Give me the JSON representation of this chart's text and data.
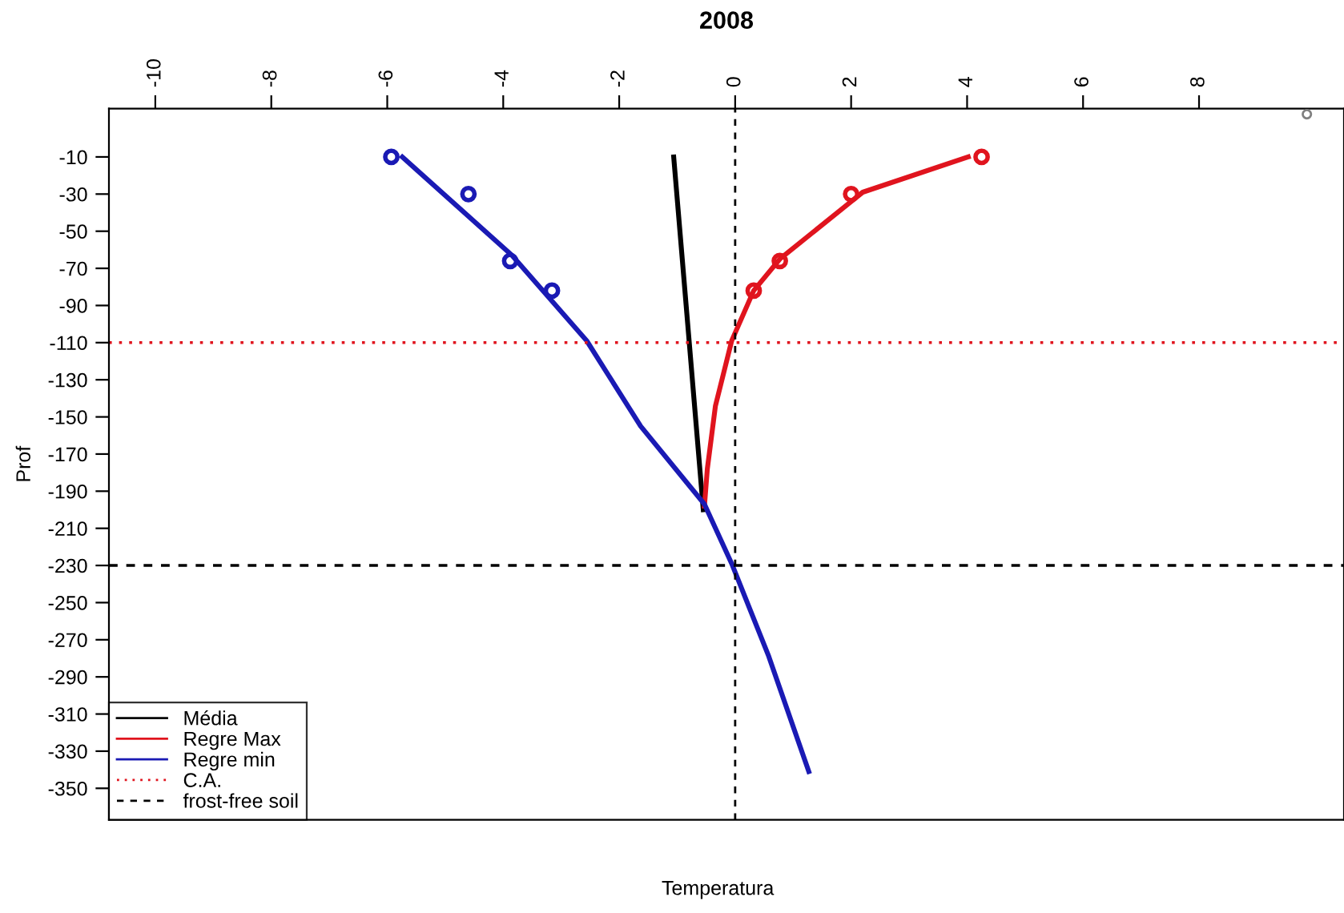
{
  "chart_data": {
    "type": "line",
    "title": "2008",
    "xlabel": "Temperatura",
    "ylabel": "Prof",
    "xlim": [
      -10.8,
      10.5
    ],
    "ylim": [
      -367,
      16
    ],
    "xticks": [
      -10,
      -8,
      -6,
      -4,
      -2,
      0,
      2,
      4,
      6,
      8
    ],
    "yticks": [
      -10,
      -30,
      -50,
      -70,
      -90,
      -110,
      -130,
      -150,
      -170,
      -190,
      -210,
      -230,
      -250,
      -270,
      -290,
      -310,
      -330,
      -350
    ],
    "grid": false,
    "legend": "bottom left",
    "marker": "none",
    "line_style": "solid",
    "series": [
      {
        "name": "Média",
        "color": "#000000",
        "x": [
          -1.06,
          -0.55
        ],
        "values": [
          -10,
          -200
        ]
      },
      {
        "name": "Regre Max",
        "color": "#e0141e",
        "x": [
          4.02,
          2.2,
          0.77,
          0.32,
          -0.06,
          -0.34,
          -0.48,
          -0.53
        ],
        "values": [
          -10,
          -29,
          -65,
          -82,
          -109,
          -144,
          -178,
          -198
        ]
      },
      {
        "name": "Regre min",
        "color": "#1a1ab4",
        "x": [
          -5.74,
          -3.85,
          -2.56,
          -1.63,
          -0.53,
          -0.06,
          0.58,
          1.27
        ],
        "values": [
          -10,
          -63,
          -109,
          -155,
          -197,
          -229,
          -279,
          -341
        ]
      },
      {
        "color": "#1a1ab4",
        "type": "scatter",
        "marker": "circle",
        "x": [
          -5.93,
          -4.6,
          -3.88,
          -3.16
        ],
        "values": [
          -10,
          -30,
          -66,
          -82
        ]
      },
      {
        "color": "#e0141e",
        "type": "scatter",
        "marker": "circle",
        "x": [
          4.25,
          2.0,
          0.77,
          0.32
        ],
        "values": [
          -10,
          -30,
          -66,
          -82
        ]
      },
      {
        "color": "#808080",
        "type": "scatter",
        "marker": "circle",
        "x": [
          9.86
        ],
        "values": [
          13
        ]
      }
    ],
    "ref_lines": [
      {
        "axis": "y",
        "value": -110,
        "label": "C.A.",
        "color": "#e0141e",
        "line_style": "dotted"
      },
      {
        "axis": "y",
        "value": -230,
        "label": "frost-free soil",
        "color": "#000000",
        "line_style": "dashed"
      },
      {
        "axis": "x",
        "value": 0,
        "color": "#000000",
        "line_style": "dashed"
      }
    ]
  }
}
